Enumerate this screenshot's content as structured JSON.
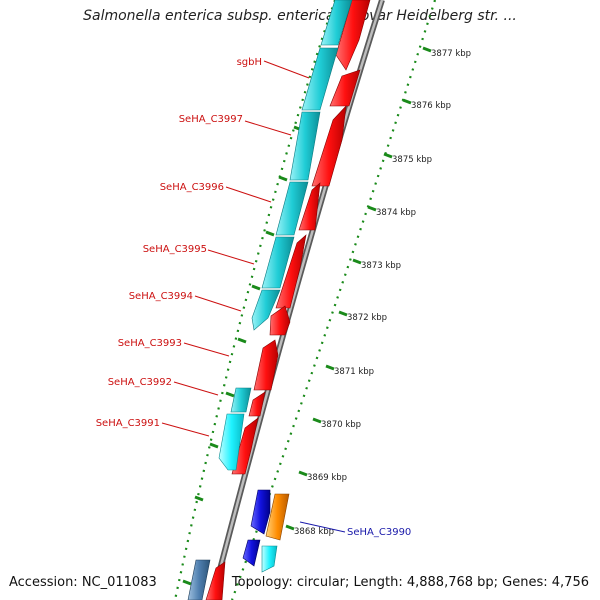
{
  "title": "Salmonella enterica subsp. enterica serovar Heidelberg str. ...",
  "footer": {
    "accession": "Accession: NC_011083",
    "summary": "Topology: circular; Length: 4,888,768 bp; Genes: 4,756"
  },
  "colors": {
    "forward_cds": "#ff1a1a",
    "reverse_cds": "#23c9d2",
    "rna": "#1414e6",
    "other": "#ff8c00",
    "backbone": "#8c8c8c",
    "tick": "#1a8a1a",
    "label_red": "#cc1111",
    "label_blue": "#1a1aaa"
  },
  "tick_labels": [
    "3877 kbp",
    "3876 kbp",
    "3875 kbp",
    "3874 kbp",
    "3873 kbp",
    "3872 kbp",
    "3871 kbp",
    "3870 kbp",
    "3869 kbp",
    "3868 kbp"
  ],
  "gene_labels": [
    {
      "name": "sgbH",
      "color": "red"
    },
    {
      "name": "SeHA_C3997",
      "color": "red"
    },
    {
      "name": "SeHA_C3996",
      "color": "red"
    },
    {
      "name": "SeHA_C3995",
      "color": "red"
    },
    {
      "name": "SeHA_C3994",
      "color": "red"
    },
    {
      "name": "SeHA_C3993",
      "color": "red"
    },
    {
      "name": "SeHA_C3992",
      "color": "red"
    },
    {
      "name": "SeHA_C3991",
      "color": "red"
    },
    {
      "name": "SeHA_C3990",
      "color": "blue"
    }
  ]
}
